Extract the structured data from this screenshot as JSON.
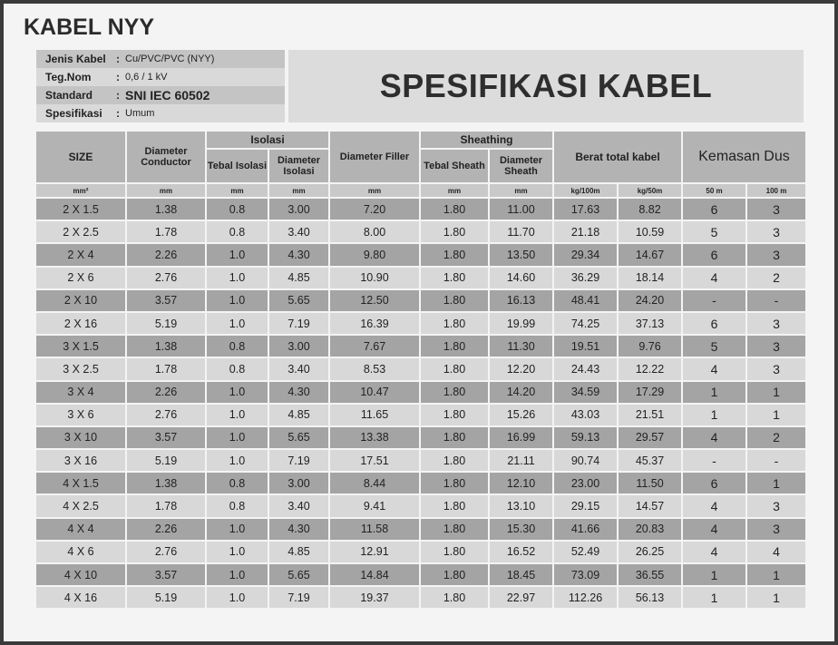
{
  "header": {
    "title": "KABEL NYY",
    "banner": "SPESIFIKASI KABEL"
  },
  "info": {
    "separator": ":",
    "rows": [
      [
        "Jenis Kabel",
        "Cu/PVC/PVC (NYY)"
      ],
      [
        "Teg.Nom",
        "0,6 / 1 kV"
      ],
      [
        "Standard",
        "SNI IEC 60502"
      ],
      [
        "Spesifikasi",
        "Umum"
      ]
    ]
  },
  "table": {
    "head": {
      "size": "SIZE",
      "diameter_conductor": "Diameter Conductor",
      "isolasi": "Isolasi",
      "tebal_isolasi": "Tebal Isolasi",
      "diameter_isolasi": "Diameter Isolasi",
      "diameter_filler": "Diameter Filler",
      "sheathing": "Sheathing",
      "tebal_sheath": "Tebal Sheath",
      "diameter_sheath": "Diameter Sheath",
      "berat": "Berat total kabel",
      "kemasan": "Kemasan Dus"
    },
    "units": [
      "mm²",
      "mm",
      "mm",
      "mm",
      "mm",
      "mm",
      "mm",
      "kg/100m",
      "kg/50m",
      "50 m",
      "100 m"
    ],
    "rows": [
      [
        "2 X 1.5",
        "1.38",
        "0.8",
        "3.00",
        "7.20",
        "1.80",
        "11.00",
        "17.63",
        "8.82",
        "6",
        "3"
      ],
      [
        "2 X 2.5",
        "1.78",
        "0.8",
        "3.40",
        "8.00",
        "1.80",
        "11.70",
        "21.18",
        "10.59",
        "5",
        "3"
      ],
      [
        "2 X 4",
        "2.26",
        "1.0",
        "4.30",
        "9.80",
        "1.80",
        "13.50",
        "29.34",
        "14.67",
        "6",
        "3"
      ],
      [
        "2 X 6",
        "2.76",
        "1.0",
        "4.85",
        "10.90",
        "1.80",
        "14.60",
        "36.29",
        "18.14",
        "4",
        "2"
      ],
      [
        "2 X 10",
        "3.57",
        "1.0",
        "5.65",
        "12.50",
        "1.80",
        "16.13",
        "48.41",
        "24.20",
        "-",
        "-"
      ],
      [
        "2 X 16",
        "5.19",
        "1.0",
        "7.19",
        "16.39",
        "1.80",
        "19.99",
        "74.25",
        "37.13",
        "6",
        "3"
      ],
      [
        "3 X 1.5",
        "1.38",
        "0.8",
        "3.00",
        "7.67",
        "1.80",
        "11.30",
        "19.51",
        "9.76",
        "5",
        "3"
      ],
      [
        "3 X 2.5",
        "1.78",
        "0.8",
        "3.40",
        "8.53",
        "1.80",
        "12.20",
        "24.43",
        "12.22",
        "4",
        "3"
      ],
      [
        "3 X 4",
        "2.26",
        "1.0",
        "4.30",
        "10.47",
        "1.80",
        "14.20",
        "34.59",
        "17.29",
        "1",
        "1"
      ],
      [
        "3 X 6",
        "2.76",
        "1.0",
        "4.85",
        "11.65",
        "1.80",
        "15.26",
        "43.03",
        "21.51",
        "1",
        "1"
      ],
      [
        "3 X  10",
        "3.57",
        "1.0",
        "5.65",
        "13.38",
        "1.80",
        "16.99",
        "59.13",
        "29.57",
        "4",
        "2"
      ],
      [
        "3 X 16",
        "5.19",
        "1.0",
        "7.19",
        "17.51",
        "1.80",
        "21.11",
        "90.74",
        "45.37",
        "-",
        "-"
      ],
      [
        "4 X 1.5",
        "1.38",
        "0.8",
        "3.00",
        "8.44",
        "1.80",
        "12.10",
        "23.00",
        "11.50",
        "6",
        "1"
      ],
      [
        "4 X 2.5",
        "1.78",
        "0.8",
        "3.40",
        "9.41",
        "1.80",
        "13.10",
        "29.15",
        "14.57",
        "4",
        "3"
      ],
      [
        "4 X 4",
        "2.26",
        "1.0",
        "4.30",
        "11.58",
        "1.80",
        "15.30",
        "41.66",
        "20.83",
        "4",
        "3"
      ],
      [
        "4 X 6",
        "2.76",
        "1.0",
        "4.85",
        "12.91",
        "1.80",
        "16.52",
        "52.49",
        "26.25",
        "4",
        "4"
      ],
      [
        "4 X 10",
        "3.57",
        "1.0",
        "5.65",
        "14.84",
        "1.80",
        "18.45",
        "73.09",
        "36.55",
        "1",
        "1"
      ],
      [
        "4 X 16",
        "5.19",
        "1.0",
        "7.19",
        "19.37",
        "1.80",
        "22.97",
        "112.26",
        "56.13",
        "1",
        "1"
      ]
    ]
  }
}
